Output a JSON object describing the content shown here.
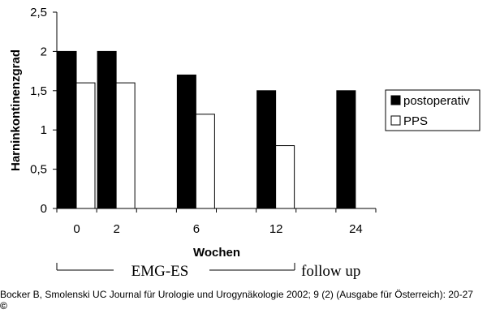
{
  "chart_data": {
    "type": "bar",
    "categories": [
      "0",
      "2",
      "",
      "6",
      "",
      "12",
      "",
      "24"
    ],
    "series": [
      {
        "name": "postoperativ",
        "color": "#000000",
        "values": [
          2,
          2,
          null,
          1.7,
          null,
          1.5,
          null,
          1.5
        ]
      },
      {
        "name": "PPS",
        "color": "#ffffff",
        "values": [
          1.6,
          1.6,
          null,
          1.2,
          null,
          0.8,
          null,
          null
        ]
      }
    ],
    "xlabel": "Wochen",
    "ylabel": "Harninkontinenzgrad",
    "ylim": [
      0,
      2.5
    ],
    "yticks": [
      "0",
      "0,5",
      "1",
      "1,5",
      "2",
      "2,5"
    ],
    "grid": false,
    "legend_position": "right",
    "annotations": {
      "emg_es": "EMG-ES",
      "follow_up": "follow up"
    }
  },
  "citation": "Bocker B, Smolenski UC Journal für Urologie und Urogynäkologie 2002; 9 (2) (Ausgabe für Österreich): 20-27",
  "copyright": "©"
}
